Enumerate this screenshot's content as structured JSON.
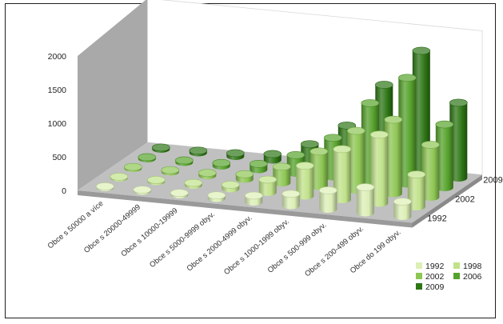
{
  "chart_data": {
    "type": "bar",
    "style": "3d-cylinder",
    "categories": [
      "Obce s 50000 a více",
      "Obce s 20000-49999",
      "Obce s 10000-19999",
      "Obce s 5000-9999 obyv.",
      "Obce s 2000-4999 obyv.",
      "Obce s 1000-1999 obyv.",
      "Obce s 500-999 obyv.",
      "Obce s 200-499 obyv.",
      "Obce do 199 obyv."
    ],
    "series": [
      {
        "name": "1992",
        "color": "#dcefb6",
        "values": [
          18,
          22,
          28,
          45,
          95,
          175,
          280,
          380,
          220
        ]
      },
      {
        "name": "1998",
        "color": "#c0e28a",
        "values": [
          20,
          25,
          35,
          60,
          190,
          450,
          750,
          1020,
          480
        ]
      },
      {
        "name": "2002",
        "color": "#8dc653",
        "values": [
          22,
          28,
          40,
          75,
          240,
          520,
          880,
          1100,
          780
        ]
      },
      {
        "name": "2006",
        "color": "#56a22c",
        "values": [
          24,
          30,
          45,
          85,
          270,
          580,
          1150,
          1580,
          940
        ]
      },
      {
        "name": "2009",
        "color": "#2e7616",
        "values": [
          25,
          32,
          48,
          90,
          290,
          620,
          1280,
          1840,
          1120
        ]
      }
    ],
    "yticks": [
      0,
      500,
      1000,
      1500,
      2000
    ],
    "ylim": [
      0,
      2000
    ],
    "depth_labels": [
      "1992",
      "2002",
      "2009"
    ],
    "legend_position": "bottom-right",
    "wall_color": "#a9a9a9",
    "floor_color": "#bfc0bf"
  }
}
